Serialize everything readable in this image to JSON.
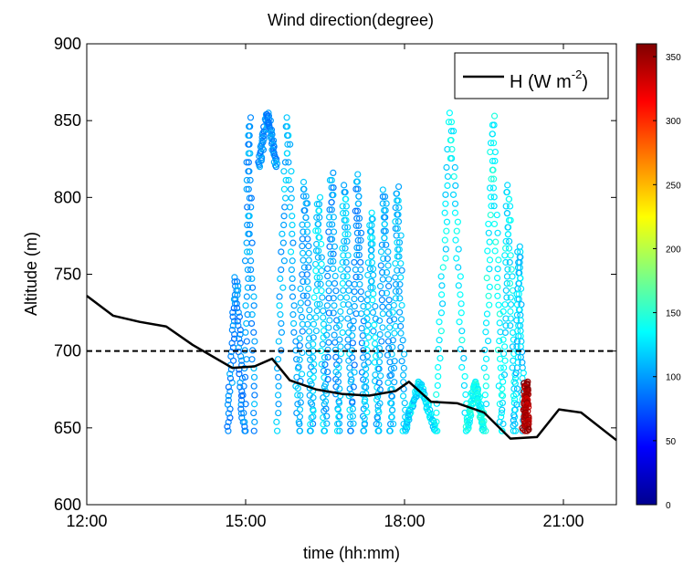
{
  "chart_data": {
    "type": "scatter",
    "title": "Wind direction(degree)",
    "xlabel": "time (hh:mm)",
    "ylabel": "Altitude (m)",
    "xlim": [
      "12:00",
      "22:00"
    ],
    "ylim": [
      600,
      900
    ],
    "x_ticks": [
      "12:00",
      "15:00",
      "18:00",
      "21:00"
    ],
    "y_ticks": [
      600,
      650,
      700,
      750,
      800,
      850,
      900
    ],
    "legend": {
      "position": "top-right",
      "entries": [
        {
          "base": "H (W m",
          "sup": "-2",
          "close": ")"
        }
      ]
    },
    "colorbar": {
      "range": [
        0,
        360
      ],
      "ticks": [
        0,
        50,
        100,
        150,
        200,
        250,
        300,
        350
      ],
      "colormap": [
        "#00008f",
        "#0000ff",
        "#00ffff",
        "#ffff00",
        "#ff0000",
        "#800000"
      ]
    },
    "reference_line": {
      "y": 700,
      "style": "dashed",
      "color": "#000000"
    },
    "H_series": {
      "name": "H",
      "color": "#000000",
      "x": [
        "12:00",
        "12:30",
        "13:00",
        "13:30",
        "14:00",
        "14:45",
        "15:10",
        "15:30",
        "15:50",
        "16:20",
        "16:50",
        "17:20",
        "17:50",
        "18:05",
        "18:30",
        "19:00",
        "19:30",
        "20:00",
        "20:30",
        "20:55",
        "21:20",
        "22:00"
      ],
      "y": [
        736,
        723,
        719,
        716,
        704,
        689,
        690,
        695,
        681,
        675,
        672,
        671,
        674,
        680,
        667,
        666,
        660,
        643,
        644,
        662,
        660,
        642
      ]
    },
    "wind_profiles": [
      {
        "t_start": "14:40",
        "t_end": "14:58",
        "alt_top": 748,
        "alt_bottom": 648,
        "direction_deg": 95
      },
      {
        "t_start": "14:58",
        "t_end": "15:10",
        "alt_top": 852,
        "alt_bottom": 648,
        "direction_deg": 100
      },
      {
        "t_start": "15:15",
        "t_end": "15:35",
        "alt_top": 855,
        "alt_bottom": 820,
        "direction_deg": 98
      },
      {
        "t_start": "15:35",
        "t_end": "16:00",
        "alt_top": 852,
        "alt_bottom": 648,
        "direction_deg": 110
      },
      {
        "t_start": "16:00",
        "t_end": "16:15",
        "alt_top": 810,
        "alt_bottom": 648,
        "direction_deg": 105
      },
      {
        "t_start": "16:15",
        "t_end": "16:30",
        "alt_top": 800,
        "alt_bottom": 648,
        "direction_deg": 120
      },
      {
        "t_start": "16:30",
        "t_end": "16:45",
        "alt_top": 816,
        "alt_bottom": 648,
        "direction_deg": 100
      },
      {
        "t_start": "16:45",
        "t_end": "17:00",
        "alt_top": 808,
        "alt_bottom": 648,
        "direction_deg": 115
      },
      {
        "t_start": "17:00",
        "t_end": "17:15",
        "alt_top": 815,
        "alt_bottom": 648,
        "direction_deg": 100
      },
      {
        "t_start": "17:15",
        "t_end": "17:30",
        "alt_top": 790,
        "alt_bottom": 648,
        "direction_deg": 118
      },
      {
        "t_start": "17:30",
        "t_end": "17:45",
        "alt_top": 805,
        "alt_bottom": 648,
        "direction_deg": 105
      },
      {
        "t_start": "17:45",
        "t_end": "18:00",
        "alt_top": 807,
        "alt_bottom": 648,
        "direction_deg": 112
      },
      {
        "t_start": "18:00",
        "t_end": "18:35",
        "alt_top": 680,
        "alt_bottom": 648,
        "direction_deg": 125
      },
      {
        "t_start": "18:35",
        "t_end": "19:10",
        "alt_top": 855,
        "alt_bottom": 648,
        "direction_deg": 130
      },
      {
        "t_start": "19:10",
        "t_end": "19:30",
        "alt_top": 680,
        "alt_bottom": 648,
        "direction_deg": 140
      },
      {
        "t_start": "19:30",
        "t_end": "19:50",
        "alt_top": 853,
        "alt_bottom": 648,
        "direction_deg": 135
      },
      {
        "t_start": "19:50",
        "t_end": "20:05",
        "alt_top": 808,
        "alt_bottom": 648,
        "direction_deg": 130
      },
      {
        "t_start": "20:05",
        "t_end": "20:15",
        "alt_top": 768,
        "alt_bottom": 648,
        "direction_deg": 120
      },
      {
        "t_start": "20:15",
        "t_end": "20:20",
        "alt_top": 680,
        "alt_bottom": 648,
        "direction_deg": 345
      }
    ]
  }
}
